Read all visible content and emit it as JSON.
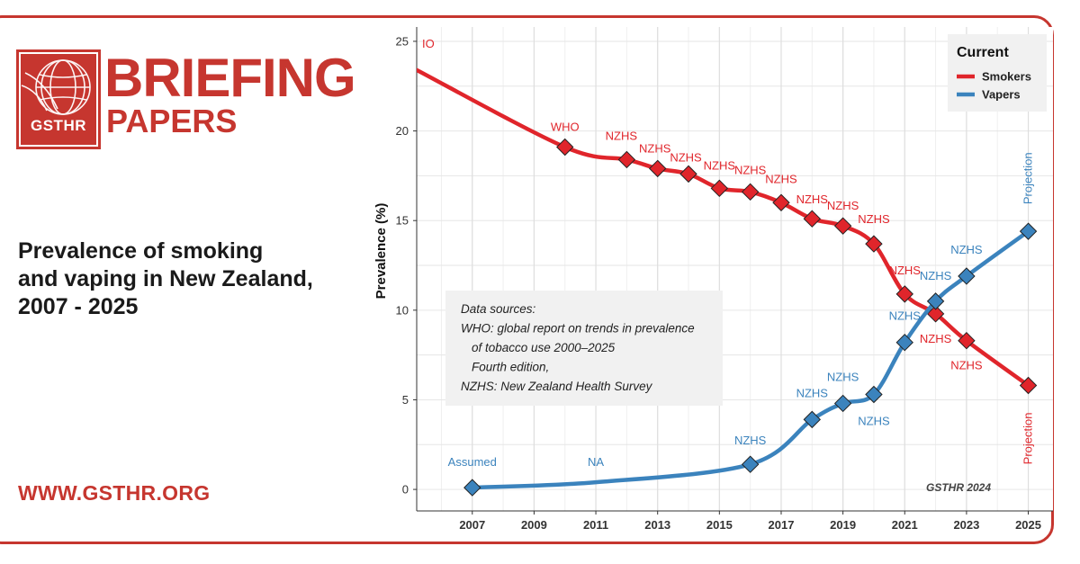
{
  "brand": {
    "logo_text": "GSTHR",
    "title_line1": "BRIEFING",
    "title_line2": "PAPERS"
  },
  "headline": {
    "line1": "Prevalence of smoking",
    "line2": "and vaping in New Zealand,",
    "line3": "2007 - 2025"
  },
  "url": "WWW.GSTHR.ORG",
  "colors": {
    "brand_red": "#c6362f",
    "smokers": "#e0252b",
    "vapers": "#3b83bd"
  },
  "chart_data": {
    "type": "line",
    "xlabel": "",
    "ylabel": "Prevalence (%)",
    "xlim": [
      2005.2,
      2025.8
    ],
    "ylim": [
      -1.2,
      25.8
    ],
    "x_ticks": [
      2007,
      2009,
      2011,
      2013,
      2015,
      2017,
      2019,
      2021,
      2023,
      2025
    ],
    "y_ticks": [
      0,
      5,
      10,
      15,
      20,
      25
    ],
    "grid": true,
    "legend": {
      "title": "Current",
      "position": "top-right"
    },
    "series": [
      {
        "name": "Smokers",
        "color": "#e0252b",
        "x": [
          2005.2,
          2010,
          2012,
          2013,
          2014,
          2015,
          2016,
          2017,
          2018,
          2019,
          2020,
          2021,
          2022,
          2023,
          2025
        ],
        "y": [
          23.4,
          19.1,
          18.4,
          17.9,
          17.6,
          16.8,
          16.6,
          16.0,
          15.1,
          14.7,
          13.7,
          10.9,
          9.8,
          8.3,
          5.8
        ],
        "marker": [
          false,
          true,
          true,
          true,
          true,
          true,
          true,
          true,
          true,
          true,
          true,
          true,
          true,
          true,
          true
        ],
        "labels": [
          "IO",
          "WHO",
          "NZHS",
          "NZHS",
          "NZHS",
          "NZHS",
          "NZHS",
          "NZHS",
          "NZHS",
          "NZHS",
          "NZHS",
          "NZHS",
          "NZHS",
          "NZHS",
          "Projection"
        ]
      },
      {
        "name": "Vapers",
        "color": "#3b83bd",
        "x": [
          2007,
          2011,
          2016,
          2018,
          2019,
          2020,
          2021,
          2022,
          2023,
          2025
        ],
        "y": [
          0.1,
          0.4,
          1.4,
          3.9,
          4.8,
          5.3,
          8.2,
          10.5,
          11.9,
          14.4
        ],
        "marker": [
          true,
          false,
          true,
          true,
          true,
          true,
          true,
          true,
          true,
          true
        ],
        "labels": [
          "Assumed",
          "NA",
          "NZHS",
          "NZHS",
          "NZHS",
          "NZHS",
          "NZHS",
          "NZHS",
          "NZHS",
          "Projection"
        ]
      }
    ],
    "annotations": {
      "sources": [
        "Data sources:",
        "WHO: global report on trends in prevalence",
        "of tobacco use 2000–2025",
        "Fourth edition,",
        "NZHS: New Zealand Health Survey"
      ],
      "credit": "GSTHR 2024"
    }
  }
}
